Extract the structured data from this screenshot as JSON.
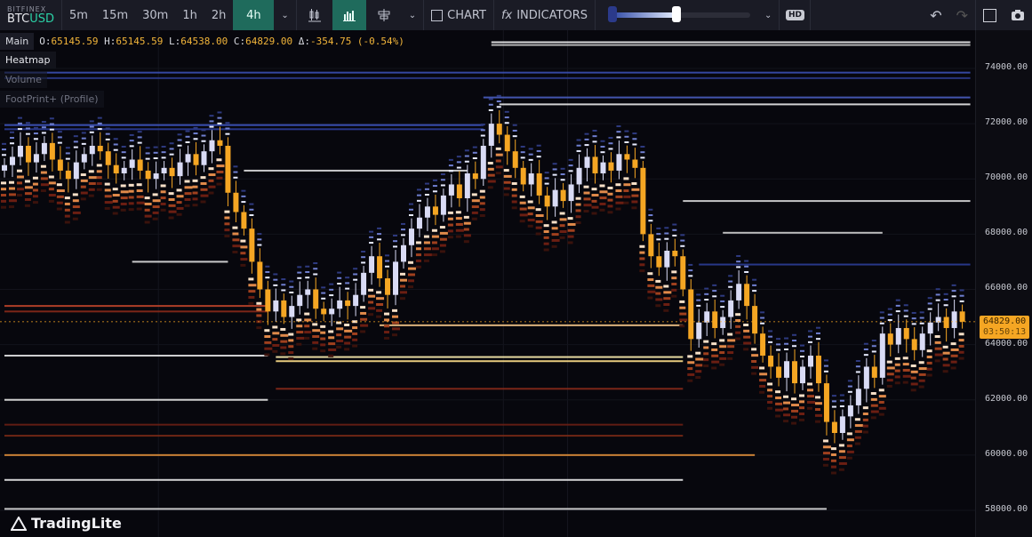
{
  "toolbar": {
    "exchange": "BITFINEX",
    "base": "BTC",
    "quote": "USD",
    "timeframes": [
      "5m",
      "15m",
      "30m",
      "1h",
      "2h",
      "4h"
    ],
    "active_timeframe": "4h",
    "chart_label": "CHART",
    "indicators_label": "INDICATORS",
    "hd_label": "HD",
    "heatmap_intensity": 0.48
  },
  "legend": {
    "panel": "Main",
    "o_label": "O:",
    "o": "65145.59",
    "h_label": "H:",
    "h": "65145.59",
    "l_label": "L:",
    "l": "64538.00",
    "c_label": "C:",
    "c": "64829.00",
    "d_label": "Δ:",
    "d": "-354.75 (-0.54%)"
  },
  "panels": [
    "Heatmap",
    "Volume",
    "FootPrint+ (Profile)"
  ],
  "price_axis": {
    "ticks": [
      "74000.00",
      "72000.00",
      "70000.00",
      "68000.00",
      "66000.00",
      "64000.00",
      "62000.00",
      "60000.00",
      "58000.00"
    ],
    "current_price": "64829.00",
    "countdown": "03:50:13"
  },
  "colors": {
    "up": "#d9dbf5",
    "down": "#f5a623",
    "accent": "#1f6b5c",
    "price_tag": "#f5a623"
  },
  "logo": "TradingLite",
  "candles_close": [
    70500,
    70800,
    71200,
    70600,
    70900,
    71300,
    70700,
    70300,
    70000,
    70600,
    70900,
    71200,
    71000,
    70500,
    70200,
    70400,
    70700,
    70300,
    70000,
    70200,
    70400,
    70100,
    70600,
    70900,
    70500,
    71000,
    71400,
    71200,
    69500,
    68800,
    68200,
    67000,
    66000,
    65200,
    65600,
    65000,
    65400,
    65800,
    66000,
    65300,
    65100,
    65300,
    65600,
    65400,
    65800,
    66600,
    67200,
    66400,
    65800,
    67000,
    67600,
    68200,
    68600,
    69000,
    68700,
    69400,
    69800,
    69300,
    70200,
    70000,
    71200,
    72000,
    71600,
    71000,
    70400,
    69800,
    70200,
    69400,
    69000,
    69600,
    69200,
    69800,
    70400,
    70800,
    70200,
    70600,
    70300,
    70900,
    70700,
    70400,
    68000,
    67200,
    66800,
    67400,
    67200,
    66000,
    64200,
    64800,
    65200,
    64600,
    65000,
    65600,
    66200,
    65400,
    64400,
    63600,
    63200,
    62800,
    63400,
    62600,
    63200,
    63600,
    62600,
    61200,
    60800,
    61400,
    61800,
    62400,
    63200,
    62800,
    64400,
    64000,
    64600,
    64200,
    63800,
    64400,
    64800,
    65000,
    64600,
    65200,
    64829
  ],
  "heatmap_levels": [
    {
      "price": 74950,
      "from": 61,
      "to": 121,
      "color": "#f0f0f0"
    },
    {
      "price": 74850,
      "from": 61,
      "to": 121,
      "color": "#c8c8c8"
    },
    {
      "price": 73850,
      "from": 0,
      "to": 121,
      "color": "#3a4fb0"
    },
    {
      "price": 73650,
      "from": 0,
      "to": 121,
      "color": "#2c3b8a"
    },
    {
      "price": 72950,
      "from": 60,
      "to": 121,
      "color": "#4a5ec0"
    },
    {
      "price": 72700,
      "from": 62,
      "to": 121,
      "color": "#e8e8e8"
    },
    {
      "price": 71950,
      "from": 0,
      "to": 60,
      "color": "#3f55c0"
    },
    {
      "price": 71800,
      "from": 0,
      "to": 60,
      "color": "#2b3d96"
    },
    {
      "price": 70300,
      "from": 30,
      "to": 58,
      "color": "#e0e0e0"
    },
    {
      "price": 69200,
      "from": 85,
      "to": 121,
      "color": "#d8d8d8"
    },
    {
      "price": 68050,
      "from": 90,
      "to": 110,
      "color": "#d0d0d0"
    },
    {
      "price": 67000,
      "from": 16,
      "to": 28,
      "color": "#e0e0e0"
    },
    {
      "price": 66900,
      "from": 87,
      "to": 121,
      "color": "#2b3d96"
    },
    {
      "price": 65400,
      "from": 0,
      "to": 33,
      "color": "#c0452a"
    },
    {
      "price": 65200,
      "from": 0,
      "to": 33,
      "color": "#8a2a1a"
    },
    {
      "price": 64700,
      "from": 47,
      "to": 85,
      "color": "#f5c68a"
    },
    {
      "price": 63600,
      "from": 0,
      "to": 33,
      "color": "#e8e8e8"
    },
    {
      "price": 63550,
      "from": 34,
      "to": 85,
      "color": "#fff2b0"
    },
    {
      "price": 63400,
      "from": 34,
      "to": 85,
      "color": "#ffe08a"
    },
    {
      "price": 62400,
      "from": 34,
      "to": 85,
      "color": "#8a2a1a"
    },
    {
      "price": 62000,
      "from": 0,
      "to": 33,
      "color": "#e8e8e8"
    },
    {
      "price": 61100,
      "from": 0,
      "to": 85,
      "color": "#6a1f14"
    },
    {
      "price": 60700,
      "from": 0,
      "to": 85,
      "color": "#7a2a16"
    },
    {
      "price": 60000,
      "from": 0,
      "to": 94,
      "color": "#e0903a"
    },
    {
      "price": 59100,
      "from": 0,
      "to": 85,
      "color": "#e8e8e8"
    },
    {
      "price": 58050,
      "from": 0,
      "to": 103,
      "color": "#dcdcdc"
    }
  ]
}
